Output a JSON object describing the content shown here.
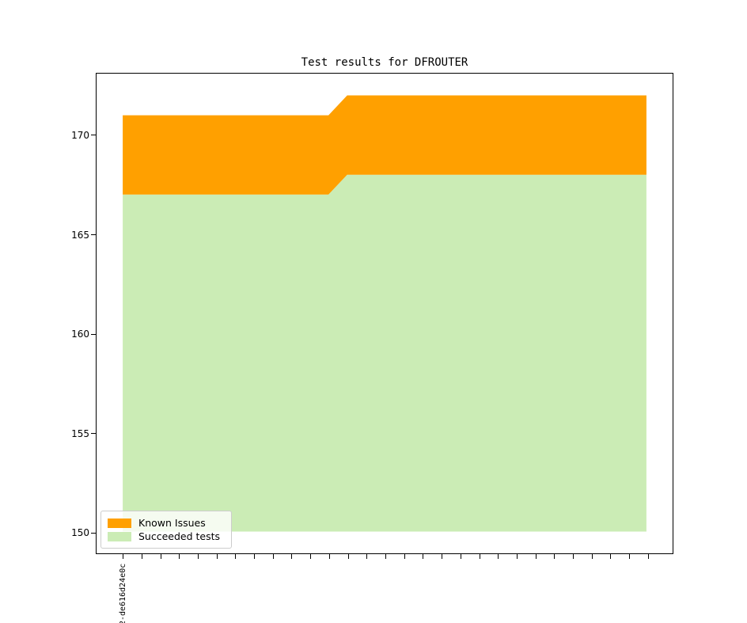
{
  "title": "Test results for DFROUTER",
  "chart_data": {
    "type": "area",
    "stacked": true,
    "title": "Test results for DFROUTER",
    "xlabel": "",
    "ylabel": "",
    "x_tick_count": 29,
    "x_first_tick_label": "2-de616d24e0c",
    "baseline": 150,
    "xlim": [
      -1.4,
      29.4
    ],
    "ylim": [
      148.9,
      173.1
    ],
    "yticks": [
      150,
      155,
      160,
      165,
      170
    ],
    "grid": false,
    "legend_position": "lower left",
    "series": [
      {
        "name": "Succeeded tests",
        "color": "#cbecb5",
        "values": [
          167,
          167,
          167,
          167,
          167,
          167,
          167,
          167,
          167,
          167,
          167,
          167,
          168,
          168,
          168,
          168,
          168,
          168,
          168,
          168,
          168,
          168,
          168,
          168,
          168,
          168,
          168,
          168,
          168
        ]
      },
      {
        "name": "Known Issues",
        "color": "#ffa000",
        "values": [
          4,
          4,
          4,
          4,
          4,
          4,
          4,
          4,
          4,
          4,
          4,
          4,
          4,
          4,
          4,
          4,
          4,
          4,
          4,
          4,
          4,
          4,
          4,
          4,
          4,
          4,
          4,
          4,
          4
        ]
      }
    ]
  },
  "legend": {
    "items": [
      {
        "label": "Known Issues",
        "color": "#ffa000"
      },
      {
        "label": "Succeeded tests",
        "color": "#cbecb5"
      }
    ]
  },
  "colors": {
    "known_issues": "#ffa000",
    "succeeded_tests": "#cbecb5",
    "axis": "#000000",
    "legend_border": "#cccccc"
  }
}
